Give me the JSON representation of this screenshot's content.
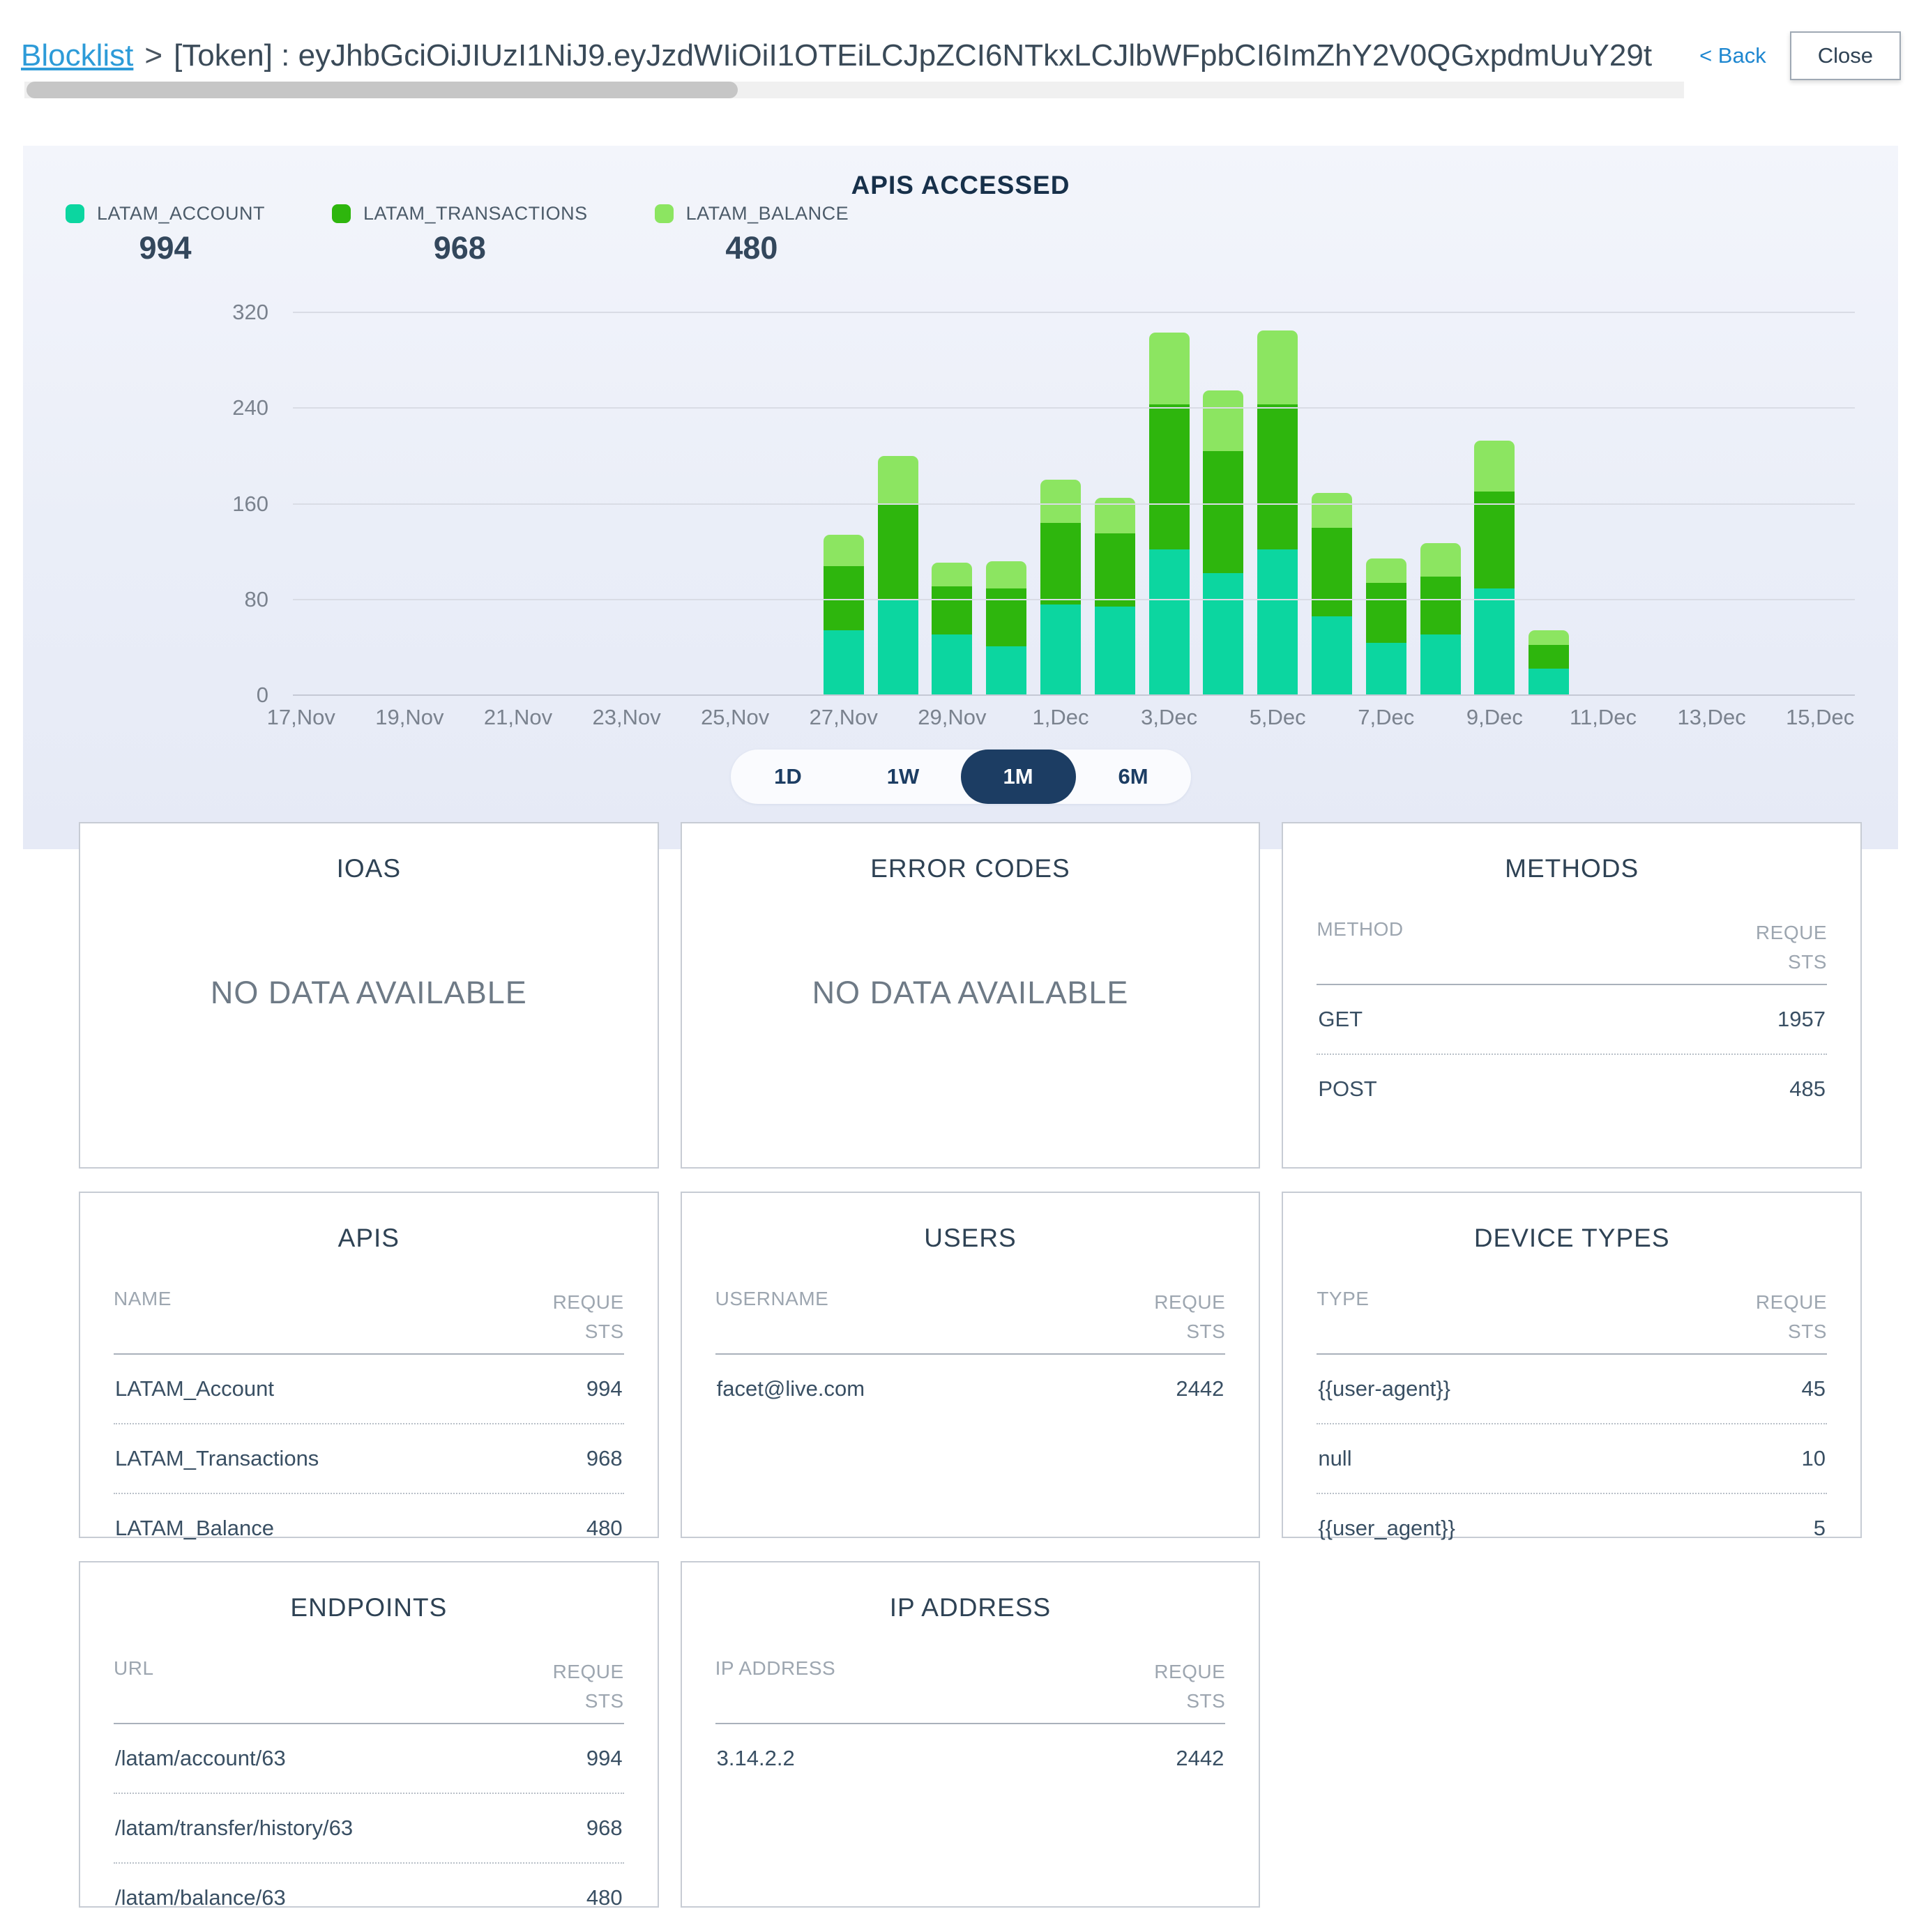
{
  "header": {
    "breadcrumb": "Blocklist",
    "separator": ">",
    "title": "[Token] : eyJhbGciOiJIUzI1NiJ9.eyJzdWIiOiI1OTEiLCJpZCI6NTkxLCJlbWFpbCI6ImZhY2V0QGxpdmUuY29t",
    "back_label": "< Back",
    "close_label": "Close"
  },
  "chart_data": {
    "type": "bar",
    "stacked": true,
    "title": "APIS ACCESSED",
    "legend": [
      {
        "name": "LATAM_ACCOUNT",
        "total": "994",
        "color": "#0CD6A0"
      },
      {
        "name": "LATAM_TRANSACTIONS",
        "total": "968",
        "color": "#2EB60D"
      },
      {
        "name": "LATAM_BALANCE",
        "total": "480",
        "color": "#8CE561"
      }
    ],
    "y_axis": {
      "ticks": [
        0,
        80,
        160,
        240,
        320
      ],
      "max": 320
    },
    "x_axis": {
      "tick_labels": [
        "17,Nov",
        "19,Nov",
        "21,Nov",
        "23,Nov",
        "25,Nov",
        "27,Nov",
        "29,Nov",
        "1,Dec",
        "3,Dec",
        "5,Dec",
        "7,Dec",
        "9,Dec",
        "11,Dec",
        "13,Dec",
        "15,Dec"
      ]
    },
    "bars": {
      "dates": [
        "27,Nov",
        "28,Nov",
        "29,Nov",
        "30,Nov",
        "1,Dec",
        "2,Dec",
        "3,Dec",
        "4,Dec",
        "5,Dec",
        "6,Dec",
        "7,Dec",
        "8,Dec",
        "9,Dec",
        "10,Dec"
      ],
      "day_offsets": [
        11,
        12,
        13,
        14,
        15,
        16,
        17,
        18,
        19,
        20,
        21,
        22,
        23,
        24
      ],
      "series": [
        {
          "name": "LATAM_ACCOUNT",
          "values": [
            54,
            80,
            51,
            41,
            76,
            74,
            122,
            102,
            122,
            66,
            44,
            51,
            89,
            22
          ]
        },
        {
          "name": "LATAM_TRANSACTIONS",
          "values": [
            54,
            80,
            40,
            48,
            68,
            61,
            121,
            102,
            121,
            74,
            50,
            48,
            81,
            20
          ]
        },
        {
          "name": "LATAM_BALANCE",
          "values": [
            26,
            40,
            20,
            23,
            36,
            30,
            60,
            51,
            62,
            29,
            20,
            28,
            43,
            12
          ]
        }
      ]
    },
    "range_buttons": [
      "1D",
      "1W",
      "1M",
      "6M"
    ],
    "active_range": "1M"
  },
  "cards": {
    "ioas": {
      "title": "IOAS",
      "empty": "NO DATA AVAILABLE"
    },
    "error_codes": {
      "title": "ERROR CODES",
      "empty": "NO DATA AVAILABLE"
    },
    "methods": {
      "title": "METHODS",
      "col1": "METHOD",
      "col2": "REQUESTS",
      "rows": [
        [
          "GET",
          "1957"
        ],
        [
          "POST",
          "485"
        ]
      ]
    },
    "apis": {
      "title": "APIS",
      "col1": "NAME",
      "col2": "REQUESTS",
      "rows": [
        [
          "LATAM_Account",
          "994"
        ],
        [
          "LATAM_Transactions",
          "968"
        ],
        [
          "LATAM_Balance",
          "480"
        ]
      ]
    },
    "users": {
      "title": "USERS",
      "col1": "USERNAME",
      "col2": "REQUESTS",
      "rows": [
        [
          "facet@live.com",
          "2442"
        ]
      ]
    },
    "device_types": {
      "title": "DEVICE TYPES",
      "col1": "TYPE",
      "col2": "REQUESTS",
      "rows": [
        [
          "{{user-agent}}",
          "45"
        ],
        [
          "null",
          "10"
        ],
        [
          "{{user_agent}}",
          "5"
        ]
      ]
    },
    "endpoints": {
      "title": "ENDPOINTS",
      "col1": "URL",
      "col2": "REQUESTS",
      "rows": [
        [
          "/latam/account/63",
          "994"
        ],
        [
          "/latam/transfer/history/63",
          "968"
        ],
        [
          "/latam/balance/63",
          "480"
        ]
      ]
    },
    "ip_address": {
      "title": "IP ADDRESS",
      "col1": "IP ADDRESS",
      "col2": "REQUESTS",
      "rows": [
        [
          "3.14.2.2",
          "2442"
        ]
      ]
    }
  }
}
